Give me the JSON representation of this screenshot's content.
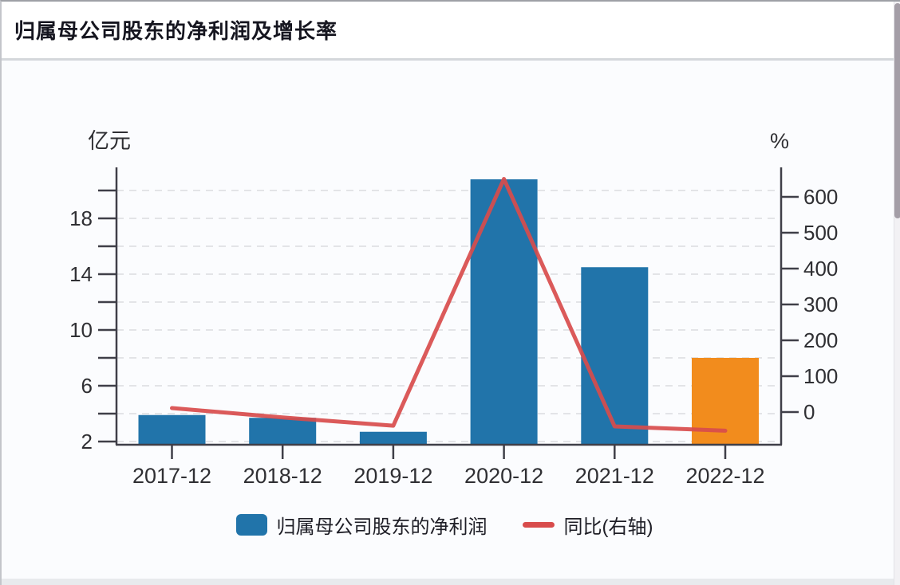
{
  "header": {
    "title": "归属母公司股东的净利润及增长率"
  },
  "chart_data": {
    "type": "bar",
    "subtype": "combo-bar-line-dual-axis",
    "categories": [
      "2017-12",
      "2018-12",
      "2019-12",
      "2020-12",
      "2021-12",
      "2022-12"
    ],
    "series": [
      {
        "name": "归属母公司股东的净利润",
        "type": "bar",
        "axis": "left",
        "values": [
          3.9,
          3.7,
          2.7,
          20.8,
          14.5,
          8.0
        ],
        "color": "#2174AA",
        "last_bar_color": "#F28C1D"
      },
      {
        "name": "同比(右轴)",
        "type": "line",
        "axis": "right",
        "values": [
          11,
          -15,
          -38,
          650,
          -40,
          -52
        ],
        "color": "#D84C4C"
      }
    ],
    "left_axis": {
      "unit": "亿元",
      "ticks": [
        2,
        4,
        6,
        8,
        10,
        12,
        14,
        16,
        18,
        20
      ],
      "labeled_ticks": [
        2,
        6,
        10,
        14,
        18
      ],
      "range": [
        1.8,
        21.7
      ]
    },
    "right_axis": {
      "unit": "%",
      "ticks": [
        0,
        100,
        200,
        300,
        400,
        500,
        600
      ],
      "range": [
        -91,
        682
      ]
    },
    "grid": "dashed-horizontal",
    "legend_position": "bottom",
    "colors": {
      "axis_line": "#3F3F48",
      "grid_line": "#DBDBDF",
      "tick_text": "#2F2F33"
    }
  }
}
